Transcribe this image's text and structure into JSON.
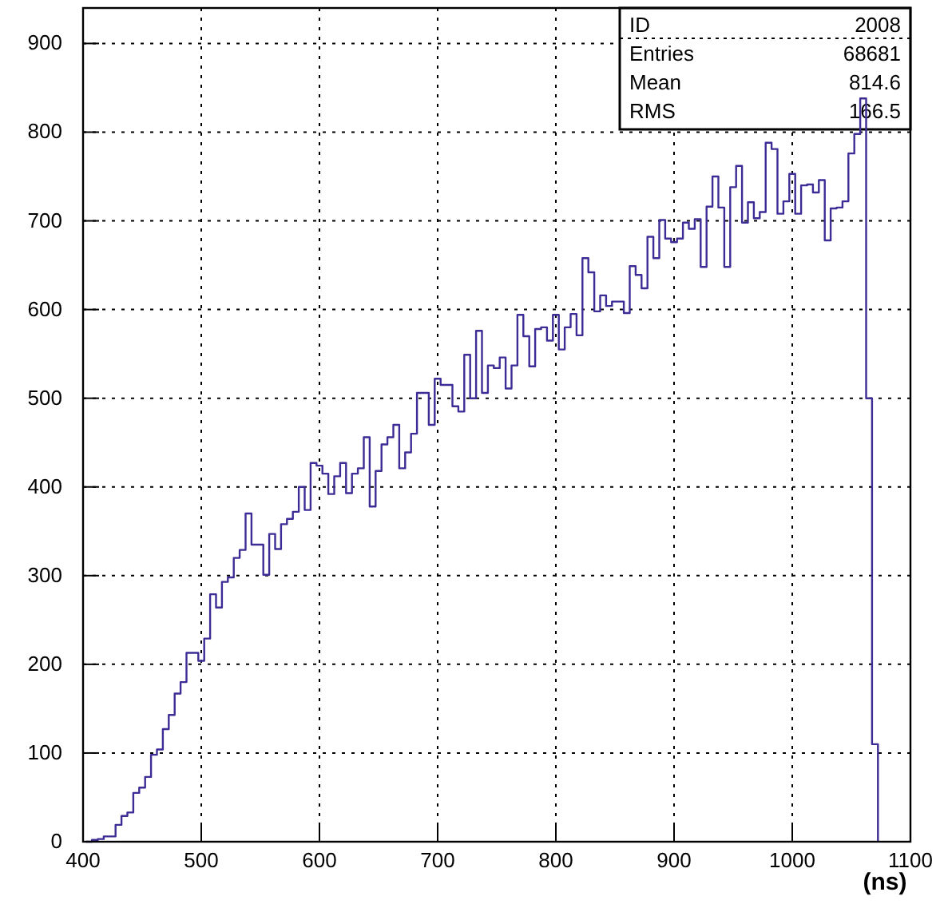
{
  "chart_data": {
    "type": "histogram",
    "xlabel": "(ns)",
    "color": "#3c2d96",
    "bins": [
      402.5,
      407.5,
      412.5,
      417.5,
      422.5,
      427.5,
      432.5,
      437.5,
      442.5,
      447.5,
      452.5,
      457.5,
      462.5,
      467.5,
      472.5,
      477.5,
      482.5,
      487.5,
      492.5,
      497.5,
      502.5,
      507.5,
      512.5,
      517.5,
      522.5,
      527.5,
      532.5,
      537.5,
      542.5,
      547.5,
      552.5,
      557.5,
      562.5,
      567.5,
      572.5,
      577.5,
      582.5,
      587.5,
      592.5,
      597.5,
      602.5,
      607.5,
      612.5,
      617.5,
      622.5,
      627.5,
      632.5,
      637.5,
      642.5,
      647.5,
      652.5,
      657.5,
      662.5,
      667.5,
      672.5,
      677.5,
      682.5,
      687.5,
      692.5,
      697.5,
      702.5,
      707.5,
      712.5,
      717.5,
      722.5,
      727.5,
      732.5,
      737.5,
      742.5,
      747.5,
      752.5,
      757.5,
      762.5,
      767.5,
      772.5,
      777.5,
      782.5,
      787.5,
      792.5,
      797.5,
      802.5,
      807.5,
      812.5,
      817.5,
      822.5,
      827.5,
      832.5,
      837.5,
      842.5,
      847.5,
      852.5,
      857.5,
      862.5,
      867.5,
      872.5,
      877.5,
      882.5,
      887.5,
      892.5,
      897.5,
      902.5,
      907.5,
      912.5,
      917.5,
      922.5,
      927.5,
      932.5,
      937.5,
      942.5,
      947.5,
      952.5,
      957.5,
      962.5,
      967.5,
      972.5,
      977.5,
      982.5,
      987.5,
      992.5,
      997.5,
      1002.5,
      1007.5,
      1012.5,
      1017.5,
      1022.5,
      1027.5,
      1032.5,
      1037.5,
      1042.5,
      1047.5,
      1052.5,
      1057.5,
      1062.5,
      1067.5,
      1072.5
    ],
    "values": [
      0,
      2,
      3,
      6,
      6,
      19,
      29,
      33,
      55,
      61,
      73,
      98,
      104,
      127,
      143,
      167,
      180,
      213,
      213,
      204,
      229,
      279,
      264,
      293,
      298,
      320,
      329,
      370,
      335,
      335,
      301,
      347,
      330,
      358,
      364,
      372,
      400,
      374,
      427,
      424,
      415,
      392,
      412,
      427,
      393,
      415,
      421,
      456,
      378,
      418,
      448,
      456,
      470,
      421,
      439,
      460,
      506,
      506,
      470,
      522,
      515,
      515,
      491,
      485,
      549,
      500,
      576,
      506,
      537,
      534,
      546,
      511,
      537,
      594,
      570,
      536,
      578,
      580,
      565,
      594,
      555,
      580,
      595,
      571,
      658,
      642,
      598,
      616,
      604,
      609,
      609,
      596,
      649,
      639,
      624,
      682,
      658,
      701,
      680,
      676,
      680,
      698,
      691,
      702,
      648,
      716,
      750,
      715,
      648,
      738,
      762,
      698,
      721,
      703,
      710,
      788,
      781,
      708,
      722,
      753,
      708,
      740,
      741,
      732,
      746,
      678,
      714,
      715,
      722,
      776,
      798,
      838,
      500,
      110
    ],
    "xlim": [
      400,
      1100
    ],
    "xticks": [
      400,
      500,
      600,
      700,
      800,
      900,
      1000,
      1100
    ],
    "ylim": [
      0,
      940
    ],
    "yticks": [
      0,
      100,
      200,
      300,
      400,
      500,
      600,
      700,
      800,
      900
    ],
    "grid": true,
    "annotations": [
      "ID",
      "2008",
      "Entries",
      "68681",
      "Mean",
      "814.6",
      "RMS",
      "166.5"
    ]
  }
}
